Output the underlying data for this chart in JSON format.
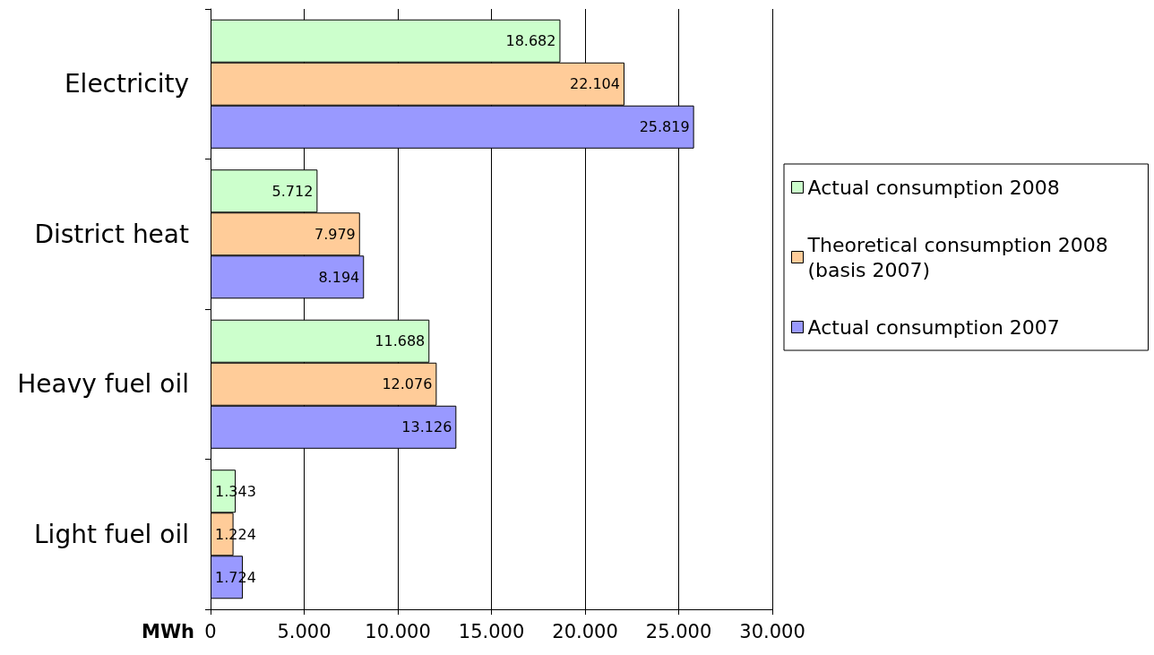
{
  "chart_data": {
    "type": "bar",
    "orientation": "horizontal",
    "xlabel": "MWh",
    "categories": [
      "Electricity",
      "District heat",
      "Heavy fuel oil",
      "Light fuel oil"
    ],
    "series": [
      {
        "name": "Actual consumption 2008",
        "color": "#ccffcc",
        "values": [
          18682,
          5712,
          11688,
          1343
        ],
        "value_labels": [
          "18.682",
          "5.712",
          "11.688",
          "1.343"
        ]
      },
      {
        "name": "Theoretical consumption 2008 (basis 2007)",
        "color": "#ffcc99",
        "values": [
          22104,
          7979,
          12076,
          1224
        ],
        "value_labels": [
          "22.104",
          "7.979",
          "12.076",
          "1.224"
        ]
      },
      {
        "name": "Actual consumption 2007",
        "color": "#9999ff",
        "values": [
          25819,
          8194,
          13126,
          1724
        ],
        "value_labels": [
          "25.819",
          "8.194",
          "13.126",
          "1.724"
        ]
      }
    ],
    "xlim": [
      0,
      30000
    ],
    "xticks": [
      0,
      {
        "value": 5000,
        "label": "5.000"
      },
      {
        "value": 10000,
        "label": "10.000"
      },
      {
        "value": 15000,
        "label": "15.000"
      },
      {
        "value": 20000,
        "label": "20.000"
      },
      {
        "value": 25000,
        "label": "25.000"
      },
      {
        "value": 30000,
        "label": "30.000"
      }
    ],
    "grid": "x",
    "legend": "right"
  }
}
